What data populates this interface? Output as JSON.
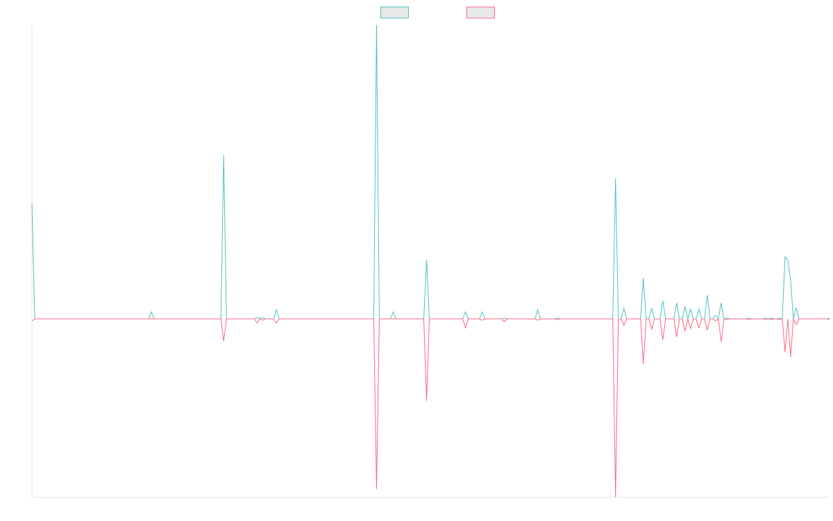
{
  "chart_data": {
    "type": "line",
    "x": [
      0,
      1,
      42,
      43,
      44,
      68,
      69,
      70,
      80,
      81,
      82,
      83,
      84,
      87,
      88,
      89,
      123,
      124,
      125,
      129,
      130,
      131,
      141,
      142,
      143,
      155,
      156,
      157,
      161,
      162,
      163,
      169,
      170,
      171,
      181,
      182,
      183,
      188,
      189,
      190,
      209,
      210,
      211,
      212,
      213,
      214,
      219,
      220,
      221,
      222,
      223,
      224,
      226,
      227,
      228,
      231,
      232,
      233,
      234,
      235,
      236,
      237,
      238,
      239,
      240,
      241,
      242,
      243,
      244,
      245,
      246,
      247,
      248,
      249,
      250,
      251,
      257,
      258,
      259,
      263,
      264,
      265,
      266,
      267,
      268,
      269,
      270,
      271,
      272,
      273,
      274,
      275,
      276,
      286,
      287
    ],
    "series": [
      {
        "color": "#4bc0c0",
        "values": [
          166,
          0,
          0,
          10,
          0,
          0,
          236,
          0,
          0,
          2,
          0,
          2,
          0,
          0,
          13,
          0,
          0,
          423,
          0,
          0,
          10,
          0,
          0,
          85,
          0,
          0,
          10,
          0,
          0,
          10,
          0,
          0,
          1,
          0,
          0,
          13,
          0,
          0,
          1,
          0,
          0,
          202,
          0,
          0,
          15,
          0,
          0,
          59,
          0,
          0,
          15,
          0,
          0,
          26,
          0,
          0,
          23,
          0,
          0,
          18,
          0,
          14,
          0,
          0,
          14,
          0,
          0,
          34,
          0,
          0,
          5,
          0,
          23,
          0,
          1,
          0,
          0,
          1,
          0,
          0,
          1,
          0,
          1,
          0,
          0,
          1,
          0,
          89,
          84,
          55,
          0,
          16,
          0,
          0,
          1
        ]
      },
      {
        "color": "#ff6384",
        "values": [
          -3,
          0,
          0,
          0,
          0,
          0,
          -32,
          0,
          0,
          -6,
          0,
          -2,
          0,
          0,
          -6,
          0,
          0,
          -245,
          0,
          0,
          0,
          0,
          0,
          -118,
          0,
          0,
          -13,
          0,
          0,
          -2,
          0,
          0,
          -4,
          0,
          0,
          -2,
          0,
          0,
          -1,
          0,
          0,
          -257,
          0,
          0,
          -9,
          0,
          0,
          -65,
          0,
          0,
          -15,
          0,
          0,
          -30,
          0,
          0,
          -26,
          0,
          0,
          -18,
          0,
          -14,
          0,
          0,
          -13,
          0,
          0,
          -16,
          0,
          0,
          -3,
          0,
          -33,
          0,
          -1,
          0,
          0,
          -1,
          0,
          0,
          -1,
          0,
          -1,
          0,
          0,
          -1,
          0,
          -48,
          0,
          -55,
          0,
          -8,
          0,
          0,
          -1
        ]
      }
    ],
    "xlim": [
      0,
      287
    ],
    "ylim": [
      -257,
      423
    ],
    "legend": "top"
  }
}
